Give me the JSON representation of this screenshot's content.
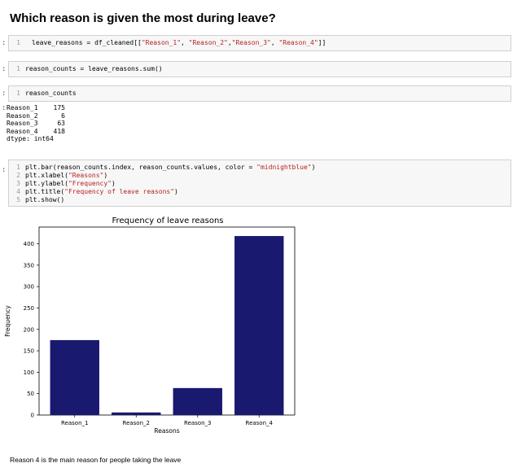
{
  "heading": "Which reason is given the most during leave?",
  "cells": [
    {
      "prompt": ":",
      "num": "1",
      "code_parts": [
        "leave_reasons = df_cleaned[[",
        "\"Reason_1\"",
        ", ",
        "\"Reason_2\"",
        ",",
        "\"Reason_3\"",
        ", ",
        "\"Reason_4\"",
        "]]"
      ]
    },
    {
      "prompt": ":",
      "num": "1",
      "code": "reason_counts = leave_reasons.sum()"
    },
    {
      "prompt": ":",
      "num": "1",
      "code": "reason_counts"
    }
  ],
  "output_series": {
    "rows": [
      {
        "label": "Reason_1",
        "value": "175"
      },
      {
        "label": "Reason_2",
        "value": "6"
      },
      {
        "label": "Reason_3",
        "value": "63"
      },
      {
        "label": "Reason_4",
        "value": "418"
      }
    ],
    "dtype": "dtype: int64"
  },
  "plot_cell": {
    "prompt": ":",
    "lines": [
      {
        "num": "1",
        "code": "plt.bar(reason_counts.index, reason_counts.values, color = ",
        "str": "\"midnightblue\"",
        "tail": ")"
      },
      {
        "num": "2",
        "code": "plt.xlabel(",
        "str": "\"Reasons\"",
        "tail": ")"
      },
      {
        "num": "3",
        "code": "plt.ylabel(",
        "str": "\"Frequency\"",
        "tail": ")"
      },
      {
        "num": "4",
        "code": "plt.title(",
        "str": "\"Frequency of leave reasons\"",
        "tail": ")"
      },
      {
        "num": "5",
        "code": "plt.show()",
        "str": "",
        "tail": ""
      }
    ]
  },
  "chart_data": {
    "type": "bar",
    "title": "Frequency of leave reasons",
    "xlabel": "Reasons",
    "ylabel": "Frequency",
    "categories": [
      "Reason_1",
      "Reason_2",
      "Reason_3",
      "Reason_4"
    ],
    "values": [
      175,
      6,
      63,
      418
    ],
    "ylim": [
      0,
      439
    ],
    "yticks": [
      0,
      50,
      100,
      150,
      200,
      250,
      300,
      350,
      400
    ],
    "color": "#191970",
    "grid": false
  },
  "note": "Reason 4 is the main reason for people taking the leave"
}
